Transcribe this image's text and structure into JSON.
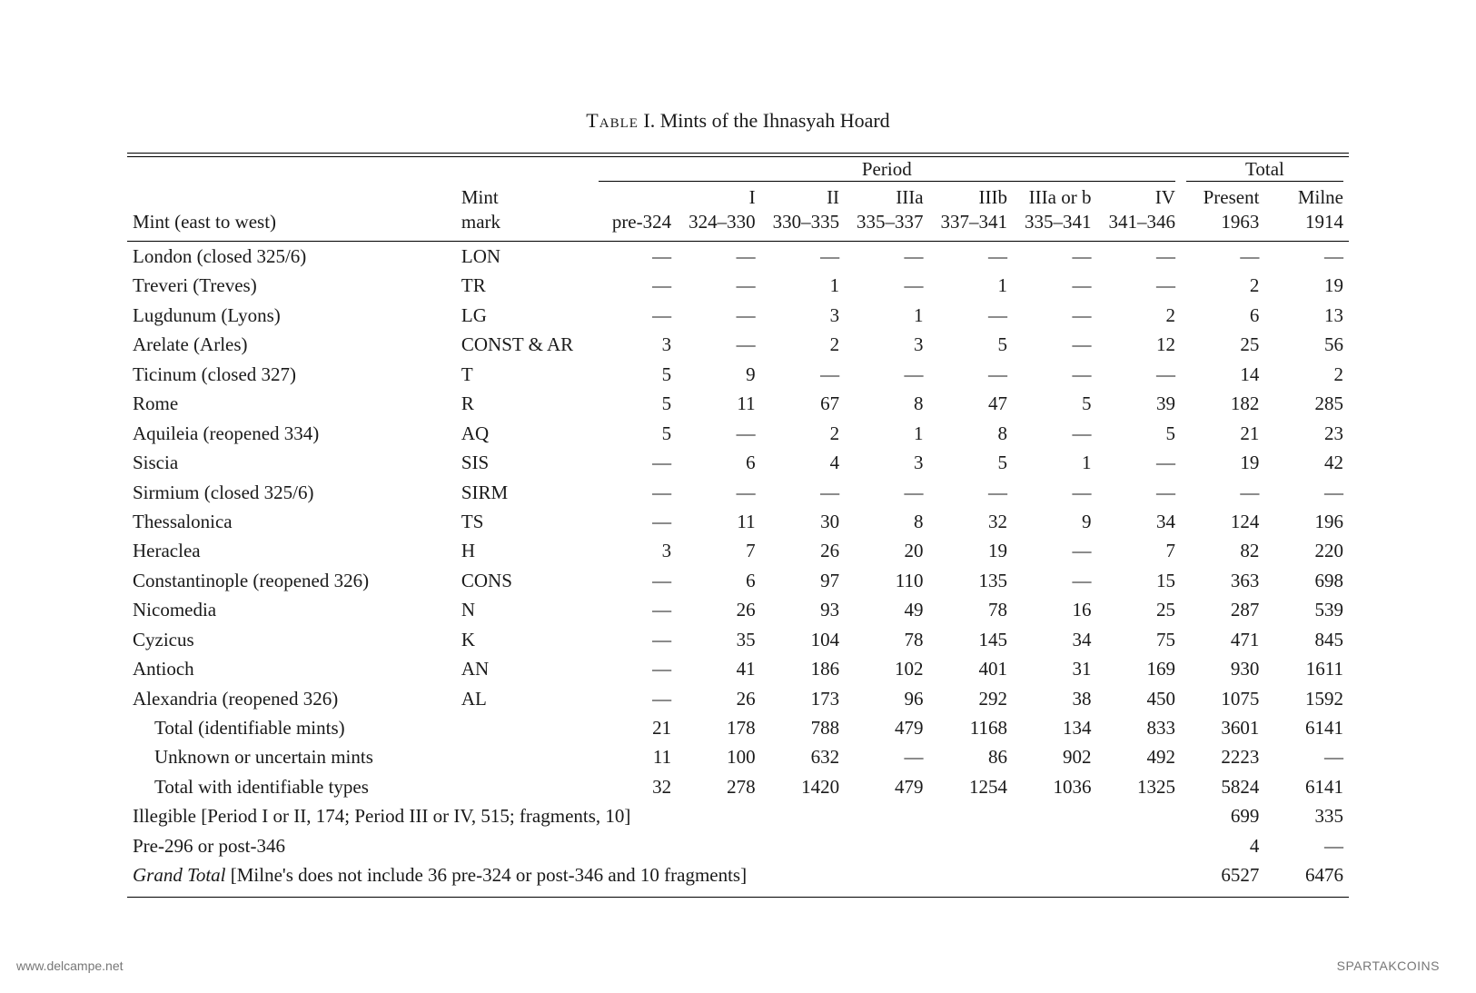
{
  "caption_prefix": "Table",
  "caption_rest": " I. Mints of the Ihnasyah Hoard",
  "header": {
    "period_label": "Period",
    "total_label": "Total",
    "mint_col": "Mint (east to west)",
    "mark_col": "Mint mark",
    "cols": [
      {
        "top": "",
        "bot": "pre-324"
      },
      {
        "top": "I",
        "bot": "324–330"
      },
      {
        "top": "II",
        "bot": "330–335"
      },
      {
        "top": "IIIa",
        "bot": "335–337"
      },
      {
        "top": "IIIb",
        "bot": "337–341"
      },
      {
        "top": "IIIa or b",
        "bot": "335–341"
      },
      {
        "top": "IV",
        "bot": "341–346"
      }
    ],
    "total_cols": [
      {
        "top": "Present",
        "bot": "1963"
      },
      {
        "top": "Milne",
        "bot": "1914"
      }
    ]
  },
  "rows": [
    {
      "mint": "London (closed 325/6)",
      "mark": "LON",
      "v": [
        "—",
        "—",
        "—",
        "—",
        "—",
        "—",
        "—",
        "—",
        "—"
      ]
    },
    {
      "mint": "Treveri (Treves)",
      "mark": "TR",
      "v": [
        "—",
        "—",
        "1",
        "—",
        "1",
        "—",
        "—",
        "2",
        "19"
      ]
    },
    {
      "mint": "Lugdunum (Lyons)",
      "mark": "LG",
      "v": [
        "—",
        "—",
        "3",
        "1",
        "—",
        "—",
        "2",
        "6",
        "13"
      ]
    },
    {
      "mint": "Arelate (Arles)",
      "mark": "CONST & AR",
      "v": [
        "3",
        "—",
        "2",
        "3",
        "5",
        "—",
        "12",
        "25",
        "56"
      ]
    },
    {
      "mint": "Ticinum (closed 327)",
      "mark": "T",
      "v": [
        "5",
        "9",
        "—",
        "—",
        "—",
        "—",
        "—",
        "14",
        "2"
      ]
    },
    {
      "mint": "Rome",
      "mark": "R",
      "v": [
        "5",
        "11",
        "67",
        "8",
        "47",
        "5",
        "39",
        "182",
        "285"
      ]
    },
    {
      "mint": "Aquileia (reopened 334)",
      "mark": "AQ",
      "v": [
        "5",
        "—",
        "2",
        "1",
        "8",
        "—",
        "5",
        "21",
        "23"
      ]
    },
    {
      "mint": "Siscia",
      "mark": "SIS",
      "v": [
        "—",
        "6",
        "4",
        "3",
        "5",
        "1",
        "—",
        "19",
        "42"
      ]
    },
    {
      "mint": "Sirmium (closed 325/6)",
      "mark": "SIRM",
      "v": [
        "—",
        "—",
        "—",
        "—",
        "—",
        "—",
        "—",
        "—",
        "—"
      ]
    },
    {
      "mint": "Thessalonica",
      "mark": "TS",
      "v": [
        "—",
        "11",
        "30",
        "8",
        "32",
        "9",
        "34",
        "124",
        "196"
      ]
    },
    {
      "mint": "Heraclea",
      "mark": "H",
      "v": [
        "3",
        "7",
        "26",
        "20",
        "19",
        "—",
        "7",
        "82",
        "220"
      ]
    },
    {
      "mint": "Constantinople (reopened 326)",
      "mark": "CONS",
      "v": [
        "—",
        "6",
        "97",
        "110",
        "135",
        "—",
        "15",
        "363",
        "698"
      ]
    },
    {
      "mint": "Nicomedia",
      "mark": "N",
      "v": [
        "—",
        "26",
        "93",
        "49",
        "78",
        "16",
        "25",
        "287",
        "539"
      ]
    },
    {
      "mint": "Cyzicus",
      "mark": "K",
      "v": [
        "—",
        "35",
        "104",
        "78",
        "145",
        "34",
        "75",
        "471",
        "845"
      ]
    },
    {
      "mint": "Antioch",
      "mark": "AN",
      "v": [
        "—",
        "41",
        "186",
        "102",
        "401",
        "31",
        "169",
        "930",
        "1611"
      ]
    },
    {
      "mint": "Alexandria (reopened 326)",
      "mark": "AL",
      "v": [
        "—",
        "26",
        "173",
        "96",
        "292",
        "38",
        "450",
        "1075",
        "1592"
      ]
    },
    {
      "mint": "Total (identifiable mints)",
      "indent": true,
      "mark": "",
      "v": [
        "21",
        "178",
        "788",
        "479",
        "1168",
        "134",
        "833",
        "3601",
        "6141"
      ]
    },
    {
      "mint": "Unknown or uncertain mints",
      "indent": true,
      "mark": "",
      "v": [
        "11",
        "100",
        "632",
        "—",
        "86",
        "902",
        "492",
        "2223",
        "—"
      ]
    },
    {
      "mint": "Total with identifiable types",
      "indent": true,
      "mark": "",
      "v": [
        "32",
        "278",
        "1420",
        "479",
        "1254",
        "1036",
        "1325",
        "5824",
        "6141"
      ]
    }
  ],
  "span_rows": [
    {
      "label": "Illegible [Period I or II, 174; Period III or IV, 515; fragments, 10]",
      "present": "699",
      "milne": "335",
      "ital": false
    },
    {
      "label": "Pre-296 or post-346",
      "present": "4",
      "milne": "—",
      "ital": false
    }
  ],
  "grand_total": {
    "prefix_ital": "Grand Total",
    "rest": " [Milne's does not include 36 pre-324 or post-346 and 10 fragments]",
    "present": "6527",
    "milne": "6476"
  },
  "watermark_left": "www.delcampe.net",
  "watermark_right": "SPARTAKCOINS",
  "style": {
    "page_bg": "#ffffff",
    "text_color": "#1a1a1a",
    "font_family": "Georgia, 'Times New Roman', serif",
    "font_size_body": 21,
    "font_size_caption": 22,
    "dash_glyph": "—"
  }
}
